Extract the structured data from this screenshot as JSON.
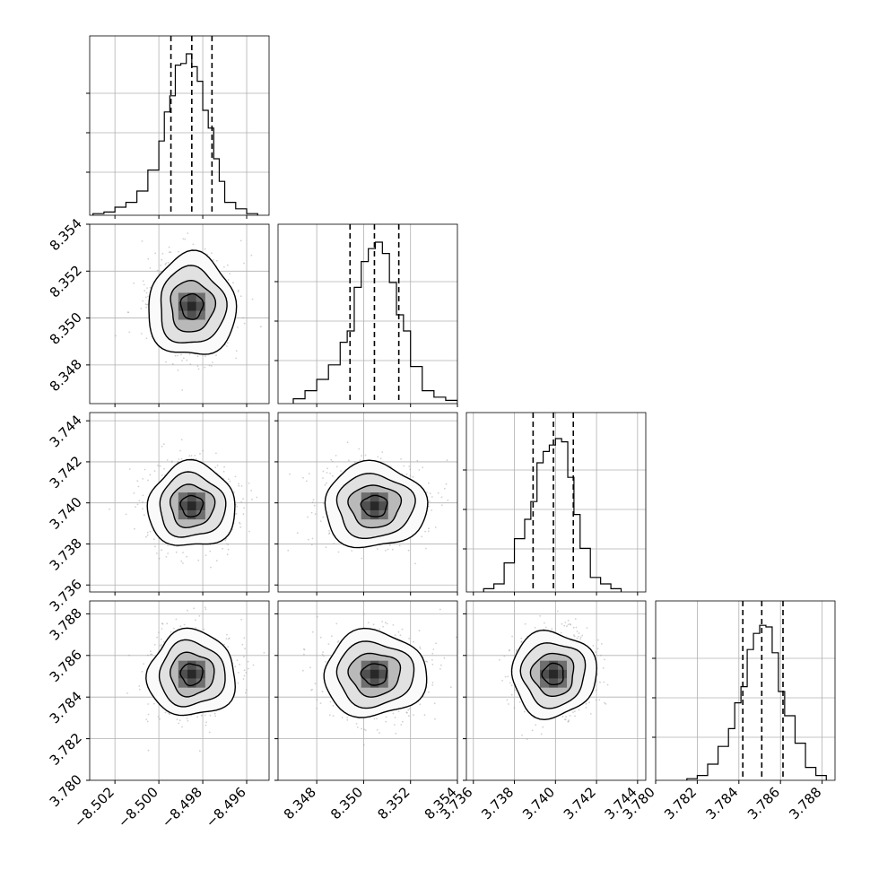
{
  "chart_data": {
    "type": "corner",
    "title": "",
    "parameters": [
      "",
      "",
      "",
      ""
    ],
    "x_tick_labels": [
      [
        "−8.502",
        "−8.500",
        "−8.498",
        "−8.496"
      ],
      [
        "8.348",
        "8.350",
        "8.352",
        "8.354"
      ],
      [
        "3.736",
        "3.738",
        "3.740",
        "3.742",
        "3.744"
      ],
      [
        "3.780",
        "3.782",
        "3.784",
        "3.786",
        "3.788"
      ]
    ],
    "y_tick_labels": {
      "row1": [
        "8.348",
        "8.350",
        "8.352",
        "8.354"
      ],
      "row2": [
        "3.736",
        "3.738",
        "3.740",
        "3.742",
        "3.744"
      ],
      "row3": [
        "3.780",
        "3.782",
        "3.784",
        "3.786",
        "3.788"
      ]
    },
    "axis_ranges": [
      [
        -8.50315,
        -8.49498
      ],
      [
        8.34635,
        8.354
      ],
      [
        3.73566,
        3.7444
      ],
      [
        3.78,
        3.78862
      ]
    ],
    "histograms": [
      {
        "parameter_index": 0,
        "quantiles_16_50_84": [
          -8.49945,
          -8.4985,
          -8.49758
        ],
        "bin_edges": [
          -8.503,
          -8.5025,
          -8.502,
          -8.5015,
          -8.501,
          -8.5005,
          -8.5,
          -8.49975,
          -8.4995,
          -8.49925,
          -8.499,
          -8.49875,
          -8.4985,
          -8.49825,
          -8.498,
          -8.49775,
          -8.4975,
          -8.49725,
          -8.497,
          -8.4965,
          -8.496,
          -8.4955
        ],
        "relative_heights": [
          0.01,
          0.02,
          0.05,
          0.08,
          0.15,
          0.28,
          0.46,
          0.64,
          0.74,
          0.93,
          0.94,
          1.0,
          0.92,
          0.83,
          0.65,
          0.54,
          0.35,
          0.21,
          0.08,
          0.04,
          0.01
        ]
      },
      {
        "parameter_index": 1,
        "quantiles_16_50_84": [
          8.34942,
          8.35046,
          8.3515
        ],
        "bin_edges": [
          8.347,
          8.3475,
          8.348,
          8.3485,
          8.349,
          8.3493,
          8.3496,
          8.3499,
          8.3502,
          8.3505,
          8.3508,
          8.3511,
          8.3514,
          8.3517,
          8.352,
          8.3525,
          8.353,
          8.3535,
          8.354
        ],
        "relative_heights": [
          0.03,
          0.08,
          0.15,
          0.24,
          0.38,
          0.45,
          0.72,
          0.88,
          0.96,
          1.0,
          0.93,
          0.75,
          0.55,
          0.45,
          0.23,
          0.08,
          0.04,
          0.02
        ]
      },
      {
        "parameter_index": 2,
        "quantiles_16_50_84": [
          3.73891,
          3.7399,
          3.74087
        ],
        "bin_edges": [
          3.7365,
          3.737,
          3.7375,
          3.738,
          3.7385,
          3.7388,
          3.7391,
          3.7394,
          3.7397,
          3.74,
          3.7403,
          3.7406,
          3.7409,
          3.7412,
          3.7417,
          3.7422,
          3.7427,
          3.7432
        ],
        "relative_heights": [
          0.02,
          0.05,
          0.18,
          0.33,
          0.45,
          0.56,
          0.8,
          0.87,
          0.91,
          0.95,
          0.93,
          0.71,
          0.48,
          0.27,
          0.09,
          0.05,
          0.02
        ]
      },
      {
        "parameter_index": 3,
        "quantiles_16_50_84": [
          3.78419,
          3.7851,
          3.78612
        ],
        "bin_edges": [
          3.7815,
          3.782,
          3.7825,
          3.783,
          3.7835,
          3.7838,
          3.7841,
          3.7844,
          3.7847,
          3.785,
          3.7853,
          3.7856,
          3.7859,
          3.7862,
          3.7867,
          3.7872,
          3.7877,
          3.7882
        ],
        "relative_heights": [
          0.01,
          0.03,
          0.1,
          0.21,
          0.32,
          0.48,
          0.58,
          0.81,
          0.91,
          0.96,
          0.95,
          0.79,
          0.55,
          0.4,
          0.23,
          0.08,
          0.03
        ]
      }
    ],
    "joint_panels": [
      {
        "x_param": 0,
        "y_param": 1,
        "center": [
          -8.4985,
          8.3505
        ],
        "spread": [
          0.00095,
          0.00104
        ]
      },
      {
        "x_param": 0,
        "y_param": 2,
        "center": [
          -8.4985,
          3.73985
        ],
        "spread": [
          0.00095,
          0.00098
        ]
      },
      {
        "x_param": 1,
        "y_param": 2,
        "center": [
          8.35047,
          3.73985
        ],
        "spread": [
          0.00104,
          0.00098
        ]
      },
      {
        "x_param": 0,
        "y_param": 3,
        "center": [
          -8.4985,
          3.7851
        ],
        "spread": [
          0.00095,
          0.00098
        ]
      },
      {
        "x_param": 1,
        "y_param": 3,
        "center": [
          8.35047,
          3.7851
        ],
        "spread": [
          0.00104,
          0.00098
        ]
      },
      {
        "x_param": 2,
        "y_param": 3,
        "center": [
          3.7399,
          3.7851
        ],
        "spread": [
          0.00098,
          0.00098
        ]
      }
    ],
    "contour_levels_sigma": [
      0.5,
      1.0,
      1.5,
      2.0
    ],
    "grid": true,
    "legend": "none"
  },
  "style": {
    "line_color": "#000000",
    "grid_color": "#b0b0b0",
    "scatter_color": "#9a9a9a",
    "background": "#ffffff"
  }
}
